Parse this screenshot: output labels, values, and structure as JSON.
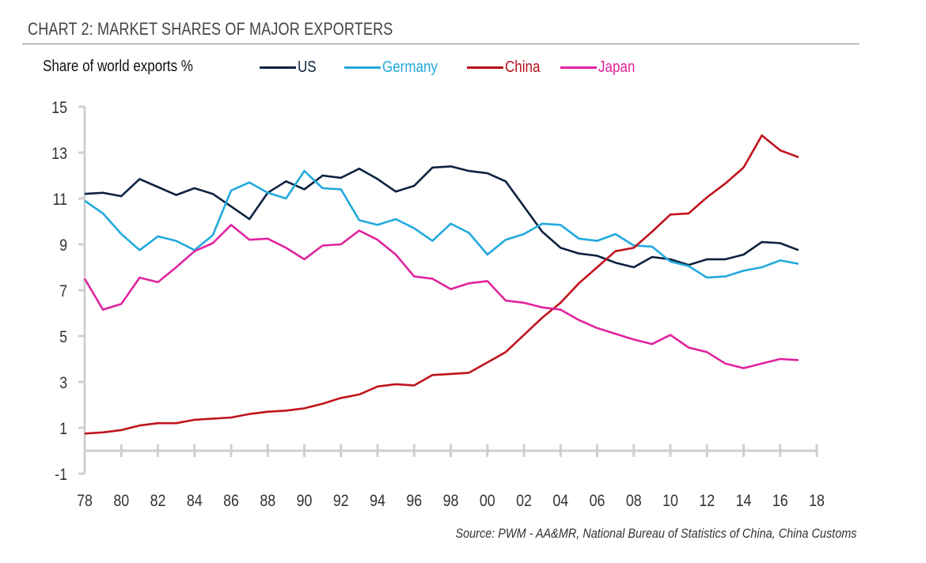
{
  "chart_data": {
    "type": "line",
    "title": "CHART 2: MARKET SHARES OF MAJOR EXPORTERS",
    "ylabel": "Share of world exports %",
    "xlabel": "",
    "source": "Source: PWM - AA&MR, National Bureau of Statistics of China, China Customs",
    "ylim": [
      -1,
      15
    ],
    "yticks": [
      "15",
      "13",
      "11",
      "9",
      "7",
      "5",
      "3",
      "1",
      "-1"
    ],
    "ytick_values": [
      15,
      13,
      11,
      9,
      7,
      5,
      3,
      1,
      -1
    ],
    "xlim": [
      1978,
      2018
    ],
    "xticks": [
      "78",
      "80",
      "82",
      "84",
      "86",
      "88",
      "90",
      "92",
      "94",
      "96",
      "98",
      "00",
      "02",
      "04",
      "06",
      "08",
      "10",
      "12",
      "14",
      "16",
      "18"
    ],
    "xtick_values": [
      1978,
      1980,
      1982,
      1984,
      1986,
      1988,
      1990,
      1992,
      1994,
      1996,
      1998,
      2000,
      2002,
      2004,
      2006,
      2008,
      2010,
      2012,
      2014,
      2016,
      2018
    ],
    "grid": false,
    "legend_position": "top",
    "x": [
      1978,
      1979,
      1980,
      1981,
      1982,
      1983,
      1984,
      1985,
      1986,
      1987,
      1988,
      1989,
      1990,
      1991,
      1992,
      1993,
      1994,
      1995,
      1996,
      1997,
      1998,
      1999,
      2000,
      2001,
      2002,
      2003,
      2004,
      2005,
      2006,
      2007,
      2008,
      2009,
      2010,
      2011,
      2012,
      2013,
      2014,
      2015,
      2016,
      2017
    ],
    "series": [
      {
        "name": "US",
        "color": "#0d2240",
        "values": [
          11.2,
          11.25,
          11.1,
          11.85,
          11.5,
          11.15,
          11.45,
          11.2,
          10.65,
          10.1,
          11.25,
          11.75,
          11.4,
          12.0,
          11.9,
          12.3,
          11.85,
          11.3,
          11.55,
          12.35,
          12.4,
          12.2,
          12.1,
          11.75,
          10.65,
          9.55,
          8.85,
          8.6,
          8.5,
          8.2,
          8.0,
          8.45,
          8.35,
          8.1,
          8.35,
          8.35,
          8.55,
          9.1,
          9.05,
          8.75
        ]
      },
      {
        "name": "Germany",
        "color": "#23a9dc",
        "values": [
          10.9,
          10.35,
          9.45,
          8.75,
          9.35,
          9.15,
          8.75,
          9.4,
          11.35,
          11.7,
          11.25,
          11.0,
          12.2,
          11.45,
          11.4,
          10.05,
          9.85,
          10.1,
          9.7,
          9.15,
          9.9,
          9.5,
          8.55,
          9.2,
          9.45,
          9.9,
          9.85,
          9.25,
          9.15,
          9.45,
          8.95,
          8.9,
          8.25,
          8.05,
          7.55,
          7.6,
          7.85,
          8.0,
          8.3,
          8.15
        ]
      },
      {
        "name": "China",
        "color": "#c0141c",
        "values": [
          0.75,
          0.8,
          0.9,
          1.1,
          1.2,
          1.2,
          1.35,
          1.4,
          1.45,
          1.6,
          1.7,
          1.75,
          1.85,
          2.05,
          2.3,
          2.45,
          2.8,
          2.9,
          2.85,
          3.3,
          3.35,
          3.4,
          3.85,
          4.3,
          5.05,
          5.8,
          6.45,
          7.3,
          8.0,
          8.7,
          8.85,
          9.55,
          10.3,
          10.35,
          11.05,
          11.65,
          12.35,
          13.75,
          13.1,
          12.8
        ]
      },
      {
        "name": "Japan",
        "color": "#e0239f",
        "values": [
          7.5,
          6.15,
          6.4,
          7.55,
          7.35,
          8.0,
          8.7,
          9.05,
          9.85,
          9.2,
          9.25,
          8.85,
          8.35,
          8.95,
          9.0,
          9.6,
          9.2,
          8.55,
          7.6,
          7.5,
          7.05,
          7.3,
          7.4,
          6.55,
          6.45,
          6.25,
          6.15,
          5.7,
          5.35,
          5.1,
          4.85,
          4.65,
          5.05,
          4.5,
          4.3,
          3.8,
          3.6,
          3.8,
          4.0,
          3.95
        ]
      }
    ]
  }
}
